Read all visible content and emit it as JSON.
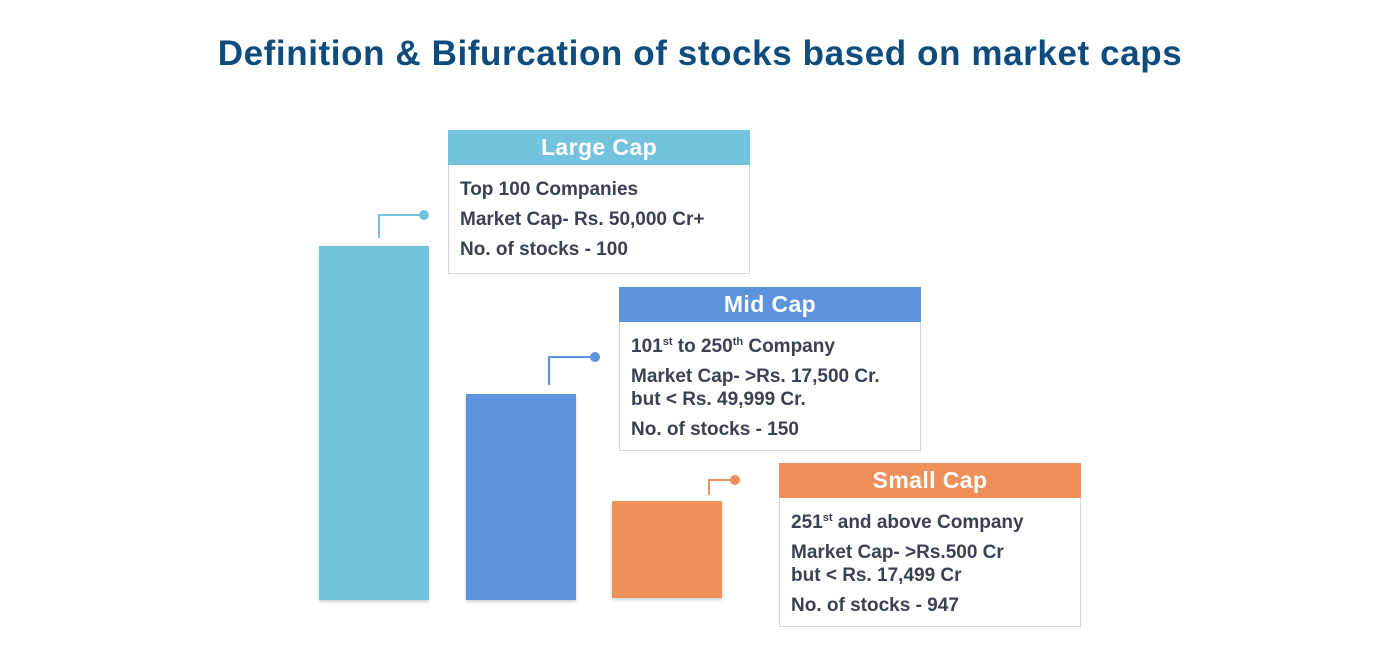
{
  "title": "Definition & Bifurcation of stocks based on market caps",
  "colors": {
    "title": "#0e4c7e",
    "large": "#74c3de",
    "mid": "#5b93dc",
    "small": "#ef8f59"
  },
  "caps": [
    {
      "key": "large",
      "header": "Large Cap",
      "rank": "Top 100 Companies",
      "market_cap": "Market Cap- Rs. 50,000 Cr+",
      "stocks": "No. of stocks - 100"
    },
    {
      "key": "mid",
      "header": "Mid Cap",
      "rank_start": "101",
      "rank_start_sup": "st",
      "rank_mid": " to 250",
      "rank_end_sup": "th",
      "rank_end": " Company",
      "market_cap_line1": "Market Cap- >Rs. 17,500 Cr.",
      "market_cap_line2": "but < Rs. 49,999 Cr.",
      "stocks": "No. of stocks - 150"
    },
    {
      "key": "small",
      "header": "Small Cap",
      "rank_start": "251",
      "rank_start_sup": "st",
      "rank_end": " and above Company",
      "market_cap_line1": "Market Cap- >Rs.500 Cr",
      "market_cap_line2": "but < Rs. 17,499 Cr",
      "stocks": "No. of stocks - 947"
    }
  ]
}
